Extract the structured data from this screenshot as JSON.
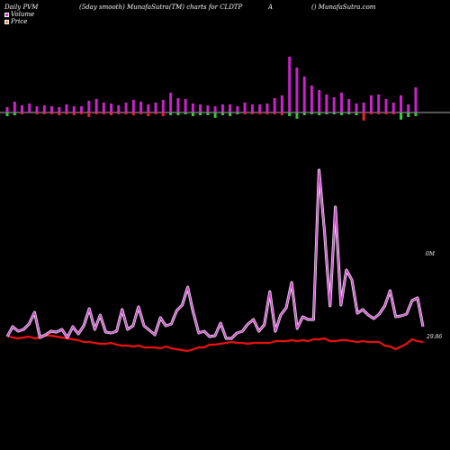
{
  "header": {
    "left": "Daily PVM",
    "center": "(5day smooth) MunafaSutra(TM) charts for CLDTP",
    "mid_right": "A",
    "right": "() MunafaSutra.com"
  },
  "legend": [
    {
      "label": "Volume",
      "color": "#cc33cc"
    },
    {
      "label": "Price",
      "color": "#ff8855"
    }
  ],
  "chart_data": {
    "type": "bar+line",
    "colors": {
      "volume_up": "#cc22cc",
      "volume_down_green": "#33cc33",
      "volume_down_red": "#ee2222",
      "pvm_line": "#cc44cc",
      "price_line": "#ee1111",
      "baseline": "#aaaaaa"
    },
    "volume_bars": [
      {
        "v": 6,
        "d": -4,
        "dc": "g"
      },
      {
        "v": 12,
        "d": -3,
        "dc": "g"
      },
      {
        "v": 8,
        "d": -2,
        "dc": "r"
      },
      {
        "v": 10,
        "d": 0,
        "dc": "g"
      },
      {
        "v": 7,
        "d": -2,
        "dc": "r"
      },
      {
        "v": 8,
        "d": -2,
        "dc": "r"
      },
      {
        "v": 7,
        "d": -2,
        "dc": "r"
      },
      {
        "v": 6,
        "d": -3,
        "dc": "r"
      },
      {
        "v": 9,
        "d": -2,
        "dc": "r"
      },
      {
        "v": 7,
        "d": -3,
        "dc": "r"
      },
      {
        "v": 7,
        "d": -2,
        "dc": "r"
      },
      {
        "v": 13,
        "d": -5,
        "dc": "r"
      },
      {
        "v": 15,
        "d": -2,
        "dc": "r"
      },
      {
        "v": 11,
        "d": -2,
        "dc": "r"
      },
      {
        "v": 10,
        "d": -3,
        "dc": "r"
      },
      {
        "v": 8,
        "d": -2,
        "dc": "r"
      },
      {
        "v": 11,
        "d": -2,
        "dc": "r"
      },
      {
        "v": 14,
        "d": -3,
        "dc": "r"
      },
      {
        "v": 12,
        "d": -2,
        "dc": "r"
      },
      {
        "v": 9,
        "d": -4,
        "dc": "r"
      },
      {
        "v": 11,
        "d": -2,
        "dc": "r"
      },
      {
        "v": 14,
        "d": -4,
        "dc": "r"
      },
      {
        "v": 22,
        "d": -3,
        "dc": "g"
      },
      {
        "v": 16,
        "d": -3,
        "dc": "g"
      },
      {
        "v": 15,
        "d": -2,
        "dc": "g"
      },
      {
        "v": 10,
        "d": -4,
        "dc": "g"
      },
      {
        "v": 9,
        "d": -3,
        "dc": "g"
      },
      {
        "v": 8,
        "d": -3,
        "dc": "g"
      },
      {
        "v": 7,
        "d": -6,
        "dc": "g"
      },
      {
        "v": 9,
        "d": -3,
        "dc": "g"
      },
      {
        "v": 9,
        "d": -4,
        "dc": "g"
      },
      {
        "v": 7,
        "d": -2,
        "dc": "g"
      },
      {
        "v": 11,
        "d": -2,
        "dc": "r"
      },
      {
        "v": 9,
        "d": -2,
        "dc": "r"
      },
      {
        "v": 9,
        "d": -2,
        "dc": "r"
      },
      {
        "v": 10,
        "d": -2,
        "dc": "r"
      },
      {
        "v": 16,
        "d": -2,
        "dc": "r"
      },
      {
        "v": 19,
        "d": -3,
        "dc": "r"
      },
      {
        "v": 62,
        "d": -4,
        "dc": "g"
      },
      {
        "v": 50,
        "d": -7,
        "dc": "g"
      },
      {
        "v": 40,
        "d": -3,
        "dc": "g"
      },
      {
        "v": 30,
        "d": -2,
        "dc": "g"
      },
      {
        "v": 25,
        "d": -3,
        "dc": "g"
      },
      {
        "v": 20,
        "d": -2,
        "dc": "g"
      },
      {
        "v": 17,
        "d": -2,
        "dc": "g"
      },
      {
        "v": 22,
        "d": -3,
        "dc": "g"
      },
      {
        "v": 15,
        "d": -2,
        "dc": "g"
      },
      {
        "v": 10,
        "d": -3,
        "dc": "g"
      },
      {
        "v": 11,
        "d": -9,
        "dc": "r"
      },
      {
        "v": 19,
        "d": -2,
        "dc": "r"
      },
      {
        "v": 20,
        "d": -2,
        "dc": "r"
      },
      {
        "v": 15,
        "d": -2,
        "dc": "r"
      },
      {
        "v": 11,
        "d": -2,
        "dc": "r"
      },
      {
        "v": 19,
        "d": -8,
        "dc": "g"
      },
      {
        "v": 9,
        "d": -5,
        "dc": "g"
      },
      {
        "v": 28,
        "d": -4,
        "dc": "g"
      }
    ],
    "pvm_line": [
      374,
      363,
      368,
      366,
      360,
      347,
      375,
      372,
      368,
      369,
      366,
      375,
      363,
      371,
      362,
      343,
      366,
      350,
      369,
      370,
      368,
      344,
      366,
      362,
      341,
      362,
      367,
      372,
      353,
      362,
      360,
      345,
      339,
      319,
      347,
      370,
      368,
      374,
      373,
      359,
      376,
      376,
      370,
      368,
      360,
      355,
      368,
      361,
      324,
      368,
      350,
      342,
      314,
      365,
      352,
      355,
      355,
      189,
      258,
      340,
      230,
      339,
      300,
      311,
      348,
      344,
      350,
      354,
      349,
      340,
      323,
      352,
      351,
      349,
      334,
      331,
      363
    ],
    "price_line": [
      373,
      375,
      376,
      375,
      374,
      376,
      375,
      373,
      373,
      374,
      375,
      376,
      377,
      378,
      380,
      380,
      381,
      382,
      382,
      381,
      383,
      384,
      384,
      385,
      384,
      386,
      386,
      386,
      387,
      385,
      387,
      388,
      389,
      390,
      388,
      386,
      386,
      383,
      383,
      382,
      381,
      380,
      381,
      381,
      382,
      381,
      381,
      381,
      381,
      379,
      379,
      379,
      378,
      379,
      378,
      379,
      377,
      377,
      376,
      379,
      379,
      378,
      378,
      379,
      380,
      379,
      380,
      380,
      380,
      384,
      385,
      388,
      385,
      382,
      377,
      379,
      380
    ],
    "right_labels": {
      "volume_max": "0M",
      "price_last": "29.86"
    }
  }
}
